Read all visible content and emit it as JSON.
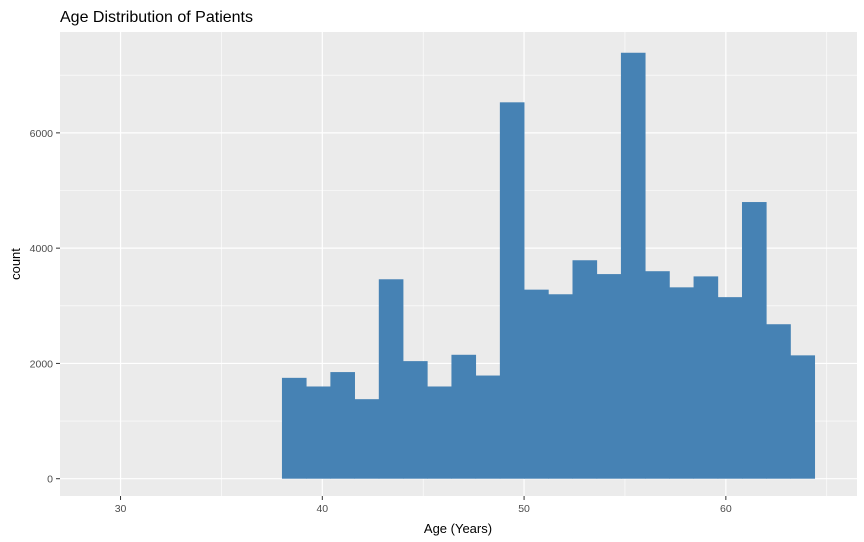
{
  "chart_data": {
    "type": "bar",
    "title": "Age Distribution of Patients",
    "xlabel": "Age (Years)",
    "ylabel": "count",
    "xlim": [
      27,
      66.5
    ],
    "ylim": [
      -300,
      7750
    ],
    "x_ticks": [
      30,
      40,
      50,
      60
    ],
    "y_ticks": [
      0,
      2000,
      4000,
      6000
    ],
    "bin_width": 1.2,
    "bin_start": 38.0,
    "values": [
      1750,
      1600,
      1850,
      1380,
      3460,
      2040,
      1600,
      2150,
      1790,
      6530,
      3280,
      3200,
      3790,
      3550,
      7390,
      3600,
      3320,
      3510,
      3150,
      4800,
      2680,
      2140
    ],
    "bar_color": "#4682B4",
    "panel_color": "#EBEBEB",
    "grid": true,
    "legend": "none"
  }
}
